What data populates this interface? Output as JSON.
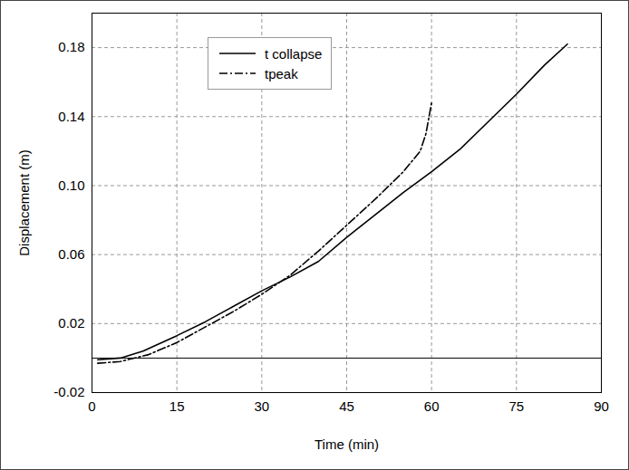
{
  "chart_data": {
    "type": "line",
    "x_label": "Time (min)",
    "y_label": "Displacement (m)",
    "xlim": [
      0,
      90
    ],
    "xticks": [
      0,
      15,
      30,
      45,
      60,
      75,
      90
    ],
    "ylim": [
      -0.02,
      0.2
    ],
    "yticks": [
      -0.02,
      0.02,
      0.06,
      {
        "value": 0.1,
        "label": "0.10"
      },
      0.14,
      0.18
    ],
    "grid": true,
    "legend": "top-left",
    "hlines": [
      0
    ],
    "series": [
      {
        "name": "t collapse",
        "color": "#000000",
        "line_style": "solid",
        "x": [
          1,
          5,
          9,
          15,
          20,
          25,
          30,
          35,
          40,
          45,
          50,
          55,
          60,
          65,
          70,
          75,
          80,
          84
        ],
        "values": [
          -0.001,
          0,
          0.004,
          0.013,
          0.021,
          0.03,
          0.039,
          0.047,
          0.056,
          0.07,
          0.083,
          0.096,
          0.108,
          0.121,
          0.137,
          0.153,
          0.17,
          0.182
        ]
      },
      {
        "name": "tpeak",
        "color": "#000000",
        "line_style": "dashdot",
        "x": [
          1,
          5,
          10,
          15,
          20,
          25,
          30,
          35,
          40,
          45,
          50,
          55,
          58,
          59,
          60
        ],
        "values": [
          -0.003,
          -0.002,
          0.002,
          0.009,
          0.018,
          0.027,
          0.037,
          0.048,
          0.062,
          0.077,
          0.092,
          0.108,
          0.12,
          0.13,
          0.148
        ]
      }
    ]
  }
}
